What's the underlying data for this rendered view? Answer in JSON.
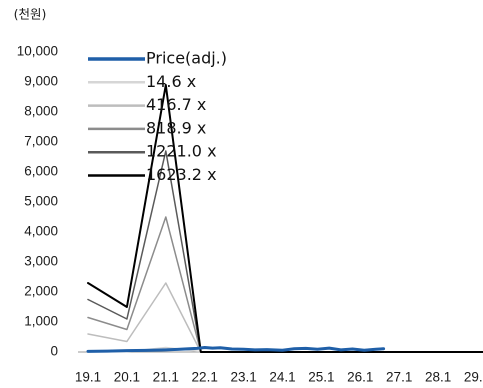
{
  "chart_data": {
    "type": "line",
    "unit_label": "(천원)",
    "x_tick_labels": [
      "19.1",
      "20.1",
      "21.1",
      "22.1",
      "23.1",
      "24.1",
      "25.1",
      "26.1",
      "27.1",
      "28.1",
      "29.1"
    ],
    "y_tick_labels": [
      "0",
      "1,000",
      "2,000",
      "3,000",
      "4,000",
      "5,000",
      "6,000",
      "7,000",
      "8,000",
      "9,000",
      "10,000"
    ],
    "ylim": [
      0,
      10000
    ],
    "xlim": [
      2019.0,
      2029.7
    ],
    "grid": false,
    "legend_position": "top-left",
    "series": [
      {
        "name": "Price(adj.)",
        "color": "#1f5fa8",
        "width": 3,
        "x": [
          2019.0,
          2019.5,
          2020.0,
          2020.5,
          2021.0,
          2021.3,
          2021.6,
          2021.8,
          2022.0,
          2022.2,
          2022.4,
          2022.7,
          2023.0,
          2023.3,
          2023.6,
          2024.0,
          2024.3,
          2024.6,
          2024.9,
          2025.2,
          2025.5,
          2025.8,
          2026.1,
          2026.4,
          2026.6
        ],
        "y": [
          20,
          30,
          45,
          55,
          70,
          85,
          110,
          120,
          150,
          130,
          140,
          100,
          90,
          70,
          80,
          60,
          110,
          120,
          90,
          130,
          70,
          100,
          60,
          90,
          110
        ]
      },
      {
        "name": "14.6 x",
        "color": "#d6d6d6",
        "width": 1.5,
        "x": [
          2019.0,
          2020.0,
          2021.0,
          2022.0,
          2023.0,
          2024.0,
          2025.0,
          2026.0,
          2027.0,
          2028.0,
          2029.0,
          2029.7
        ],
        "y": [
          20,
          10,
          150,
          0,
          0,
          0,
          0,
          0,
          0,
          0,
          0,
          0
        ]
      },
      {
        "name": "416.7 x",
        "color": "#bdbdbd",
        "width": 1.5,
        "x": [
          2019.0,
          2020.0,
          2021.0,
          2021.9,
          2023.0,
          2024.0,
          2025.0,
          2026.0,
          2027.0,
          2028.0,
          2029.0,
          2029.7
        ],
        "y": [
          600,
          350,
          2300,
          0,
          0,
          0,
          0,
          0,
          0,
          0,
          0,
          0
        ]
      },
      {
        "name": "818.9 x",
        "color": "#8c8c8c",
        "width": 1.5,
        "x": [
          2019.0,
          2020.0,
          2021.0,
          2021.9,
          2023.0,
          2024.0,
          2025.0,
          2026.0,
          2027.0,
          2028.0,
          2029.0,
          2029.7
        ],
        "y": [
          1150,
          750,
          4500,
          0,
          0,
          0,
          0,
          0,
          0,
          0,
          0,
          0
        ]
      },
      {
        "name": "1221.0 x",
        "color": "#5a5a5a",
        "width": 1.5,
        "x": [
          2019.0,
          2020.0,
          2021.0,
          2021.9,
          2023.0,
          2024.0,
          2025.0,
          2026.0,
          2027.0,
          2028.0,
          2029.0,
          2029.7
        ],
        "y": [
          1750,
          1100,
          6700,
          0,
          0,
          0,
          0,
          0,
          0,
          0,
          0,
          0
        ]
      },
      {
        "name": "1623.2 x",
        "color": "#000000",
        "width": 2,
        "x": [
          2019.0,
          2020.0,
          2021.0,
          2021.9,
          2023.0,
          2024.0,
          2025.0,
          2026.0,
          2027.0,
          2028.0,
          2029.0,
          2029.7
        ],
        "y": [
          2300,
          1500,
          8900,
          0,
          0,
          0,
          0,
          0,
          0,
          0,
          0,
          0
        ]
      }
    ]
  }
}
